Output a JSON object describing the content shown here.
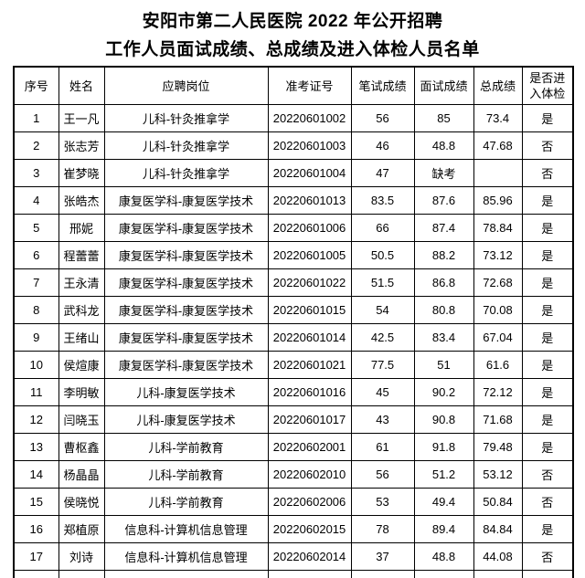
{
  "title": {
    "line1": "安阳市第二人民医院 2022 年公开招聘",
    "line2": "工作人员面试成绩、总成绩及进入体检人员名单"
  },
  "colors": {
    "text": "#000000",
    "border": "#000000",
    "background": "#ffffff"
  },
  "table": {
    "columns": [
      "序号",
      "姓名",
      "应聘岗位",
      "准考证号",
      "笔试成绩",
      "面试成绩",
      "总成绩",
      "是否进\n入体检"
    ],
    "column_keys": [
      "index",
      "name",
      "position",
      "exam-id",
      "written-score",
      "interview-score",
      "total-score",
      "enter-physical-exam"
    ],
    "rows": [
      [
        "1",
        "王一凡",
        "儿科-针灸推拿学",
        "20220601002",
        "56",
        "85",
        "73.4",
        "是"
      ],
      [
        "2",
        "张志芳",
        "儿科-针灸推拿学",
        "20220601003",
        "46",
        "48.8",
        "47.68",
        "否"
      ],
      [
        "3",
        "崔梦晓",
        "儿科-针灸推拿学",
        "20220601004",
        "47",
        "缺考",
        "",
        "否"
      ],
      [
        "4",
        "张皓杰",
        "康复医学科-康复医学技术",
        "20220601013",
        "83.5",
        "87.6",
        "85.96",
        "是"
      ],
      [
        "5",
        "邢妮",
        "康复医学科-康复医学技术",
        "20220601006",
        "66",
        "87.4",
        "78.84",
        "是"
      ],
      [
        "6",
        "程蕾蕾",
        "康复医学科-康复医学技术",
        "20220601005",
        "50.5",
        "88.2",
        "73.12",
        "是"
      ],
      [
        "7",
        "王永清",
        "康复医学科-康复医学技术",
        "20220601022",
        "51.5",
        "86.8",
        "72.68",
        "是"
      ],
      [
        "8",
        "武科龙",
        "康复医学科-康复医学技术",
        "20220601015",
        "54",
        "80.8",
        "70.08",
        "是"
      ],
      [
        "9",
        "王绪山",
        "康复医学科-康复医学技术",
        "20220601014",
        "42.5",
        "83.4",
        "67.04",
        "是"
      ],
      [
        "10",
        "侯煊康",
        "康复医学科-康复医学技术",
        "20220601021",
        "77.5",
        "51",
        "61.6",
        "是"
      ],
      [
        "11",
        "李明敏",
        "儿科-康复医学技术",
        "20220601016",
        "45",
        "90.2",
        "72.12",
        "是"
      ],
      [
        "12",
        "闫晓玉",
        "儿科-康复医学技术",
        "20220601017",
        "43",
        "90.8",
        "71.68",
        "是"
      ],
      [
        "13",
        "曹枢鑫",
        "儿科-学前教育",
        "20220602001",
        "61",
        "91.8",
        "79.48",
        "是"
      ],
      [
        "14",
        "杨晶晶",
        "儿科-学前教育",
        "20220602010",
        "56",
        "51.2",
        "53.12",
        "否"
      ],
      [
        "15",
        "侯晓悦",
        "儿科-学前教育",
        "20220602006",
        "53",
        "49.4",
        "50.84",
        "否"
      ],
      [
        "16",
        "郑植原",
        "信息科-计算机信息管理",
        "20220602015",
        "78",
        "89.4",
        "84.84",
        "是"
      ],
      [
        "17",
        "刘诗",
        "信息科-计算机信息管理",
        "20220602014",
        "37",
        "48.8",
        "44.08",
        "否"
      ]
    ]
  }
}
